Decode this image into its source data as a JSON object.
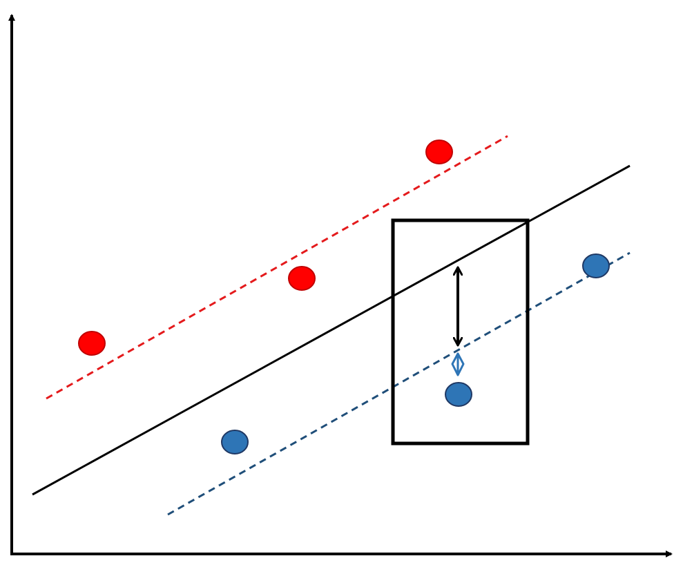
{
  "diagram": {
    "colors": {
      "axes": "#000000",
      "hyperplane": "#000000",
      "red_margin": "#e41a1c",
      "blue_margin": "#1f4e79",
      "red_point": "#ff0000",
      "red_point_stroke": "#c00000",
      "blue_point": "#2e75b6",
      "blue_point_stroke": "#1f3864",
      "highlight_box": "#000000",
      "distance_arrow": "#000000",
      "slack_marker": "#2e75b6"
    },
    "legend": "none",
    "grid": false,
    "elements": [
      "x-axis",
      "y-axis",
      "separating-hyperplane",
      "positive-margin-line",
      "negative-margin-line",
      "red-points",
      "blue-points",
      "highlight-box",
      "distance-arrow",
      "slack-marker"
    ],
    "point_counts": {
      "red": 3,
      "blue": 3
    }
  }
}
